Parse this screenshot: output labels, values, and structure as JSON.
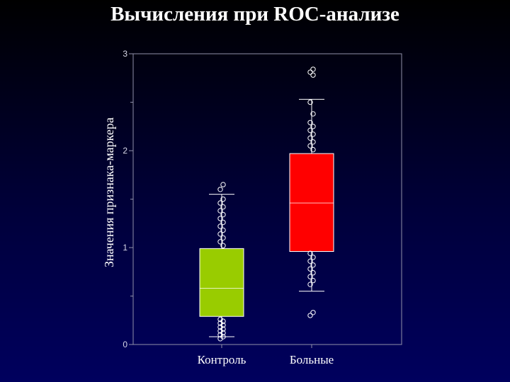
{
  "slide": {
    "title": "Вычисления при ROC-анализе"
  },
  "chart_data": {
    "type": "box",
    "title": "Вычисления при ROC-анализе",
    "xlabel": "",
    "ylabel": "Значения признака-маркера",
    "ylim": [
      0,
      3
    ],
    "yticks": [
      "0",
      "1",
      "2",
      "3"
    ],
    "grid": false,
    "categories": [
      "Контроль",
      "Больные"
    ],
    "boxes": [
      {
        "category": "Контроль",
        "color": "#99cc00",
        "q1": 0.29,
        "median": 0.58,
        "q3": 0.99,
        "whisker_low": 0.08,
        "whisker_high": 1.55,
        "outliers": [
          0.06,
          0.08,
          0.1,
          0.12,
          0.14,
          0.16,
          0.18,
          0.2,
          0.22,
          0.24,
          0.26,
          1.02,
          1.06,
          1.1,
          1.14,
          1.18,
          1.22,
          1.26,
          1.3,
          1.34,
          1.38,
          1.42,
          1.46,
          1.5,
          1.6,
          1.65
        ]
      },
      {
        "category": "Больные",
        "color": "#ff0000",
        "q1": 0.96,
        "median": 1.46,
        "q3": 1.97,
        "whisker_low": 0.55,
        "whisker_high": 2.53,
        "outliers": [
          0.3,
          0.33,
          0.62,
          0.66,
          0.7,
          0.74,
          0.78,
          0.82,
          0.86,
          0.9,
          0.94,
          2.01,
          2.05,
          2.09,
          2.13,
          2.17,
          2.21,
          2.25,
          2.29,
          2.38,
          2.5,
          2.78,
          2.81,
          2.84
        ]
      }
    ]
  }
}
